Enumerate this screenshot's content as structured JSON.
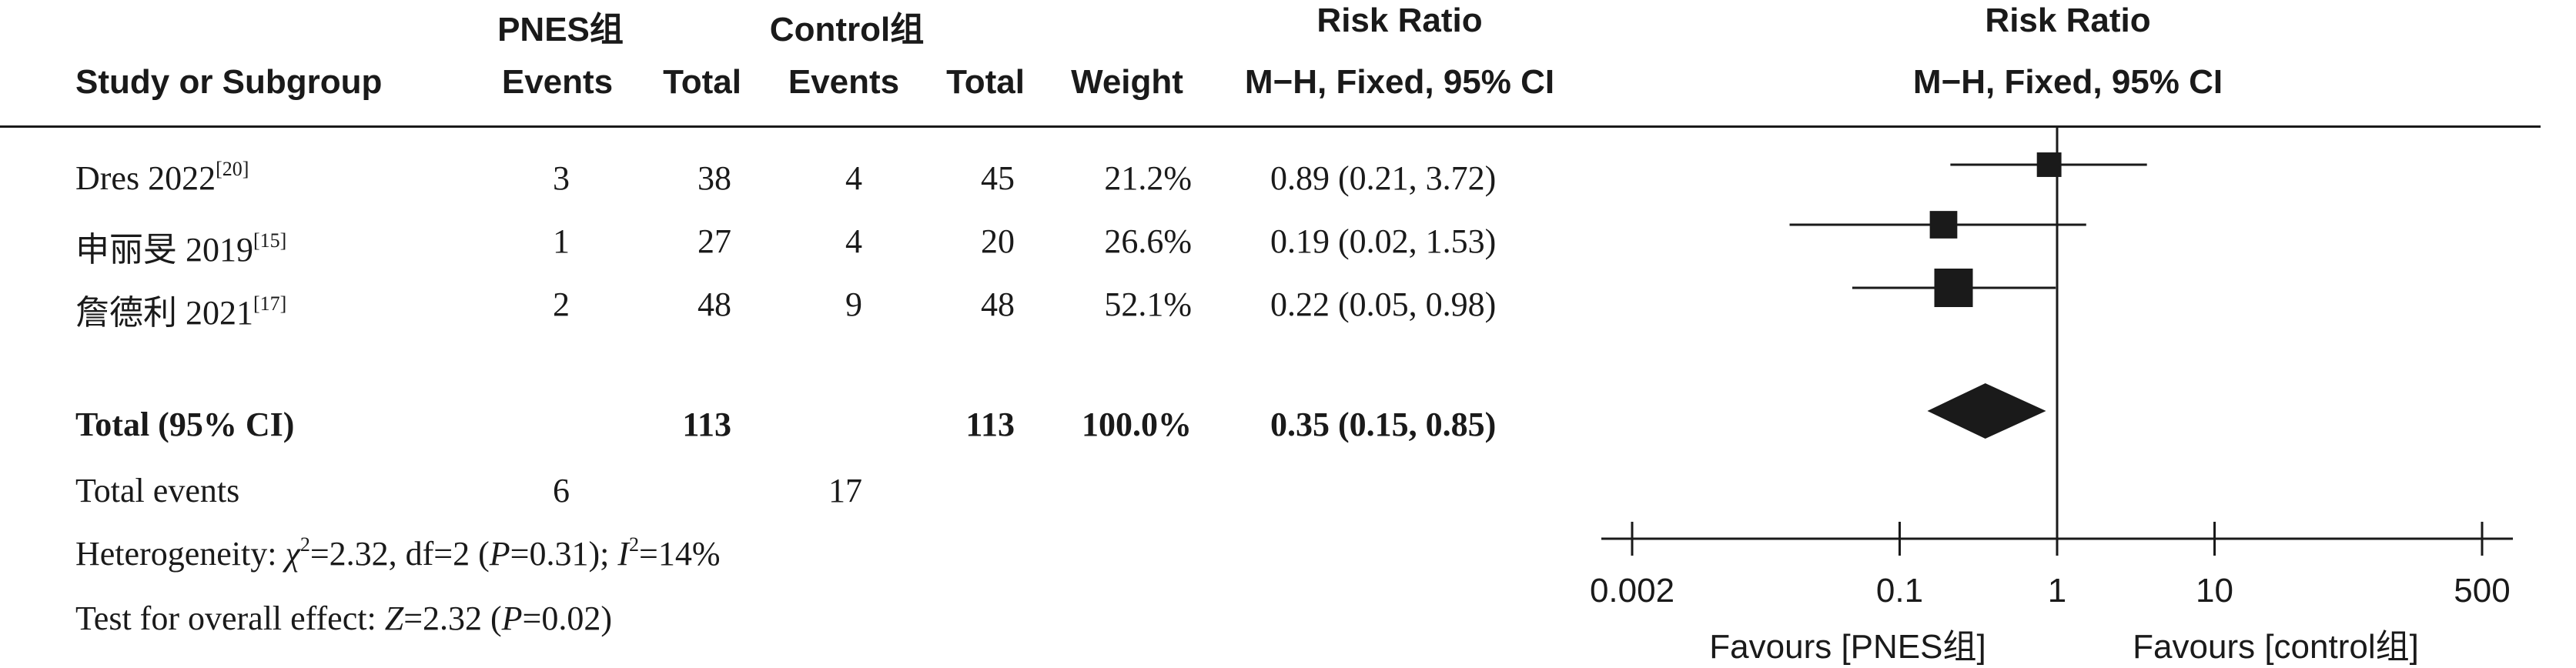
{
  "header": {
    "group1": "PNES组",
    "group2": "Control组",
    "rr_title": "Risk Ratio",
    "study_col": "Study or Subgroup",
    "events": "Events",
    "total": "Total",
    "weight": "Weight",
    "method": "M−H, Fixed, 95% CI",
    "plot_title": "Risk Ratio",
    "plot_method": "M−H, Fixed, 95% CI"
  },
  "rows": [
    {
      "name": "Dres 2022",
      "ref": "[20]",
      "e1": "3",
      "t1": "38",
      "e2": "4",
      "t2": "45",
      "weight": "21.2%",
      "ci": "0.89 (0.21, 3.72)"
    },
    {
      "name": "申丽旻 2019",
      "ref": "[15]",
      "e1": "1",
      "t1": "27",
      "e2": "4",
      "t2": "20",
      "weight": "26.6%",
      "ci": "0.19 (0.02, 1.53)"
    },
    {
      "name": "詹德利 2021",
      "ref": "[17]",
      "e1": "2",
      "t1": "48",
      "e2": "9",
      "t2": "48",
      "weight": "52.1%",
      "ci": "0.22 (0.05, 0.98)"
    }
  ],
  "total": {
    "label": "Total (95% CI)",
    "t1": "113",
    "t2": "113",
    "weight": "100.0%",
    "ci": "0.35 (0.15, 0.85)"
  },
  "total_events": {
    "label": "Total events",
    "e1": "6",
    "e2": "17"
  },
  "heterogeneity": {
    "prefix": "Heterogeneity: ",
    "chi_sym": "χ",
    "chi_exp": "2",
    "chi_rest": "=2.32, df=2 (",
    "p_sym": "P",
    "p_rest": "=0.31); ",
    "i_sym": "I",
    "i_exp": "2",
    "i_rest": "=14%"
  },
  "overall": {
    "prefix": "Test for overall effect: ",
    "z_sym": "Z",
    "z_rest": "=2.32 (",
    "p_sym": "P",
    "p_rest": "=0.02)"
  },
  "chart_data": {
    "type": "forest",
    "scale": "log",
    "xlim": [
      0.002,
      500
    ],
    "ticks": [
      0.002,
      0.1,
      1,
      10,
      500
    ],
    "tick_labels": [
      "0.002",
      "0.1",
      "1",
      "10",
      "500"
    ],
    "favours_left": "Favours [PNES组]",
    "favours_right": "Favours [control组]",
    "studies": [
      {
        "rr": 0.89,
        "lo": 0.21,
        "hi": 3.72,
        "weight": 21.2
      },
      {
        "rr": 0.19,
        "lo": 0.02,
        "hi": 1.53,
        "weight": 26.6
      },
      {
        "rr": 0.22,
        "lo": 0.05,
        "hi": 0.98,
        "weight": 52.1
      }
    ],
    "pooled": {
      "rr": 0.35,
      "lo": 0.15,
      "hi": 0.85
    }
  }
}
